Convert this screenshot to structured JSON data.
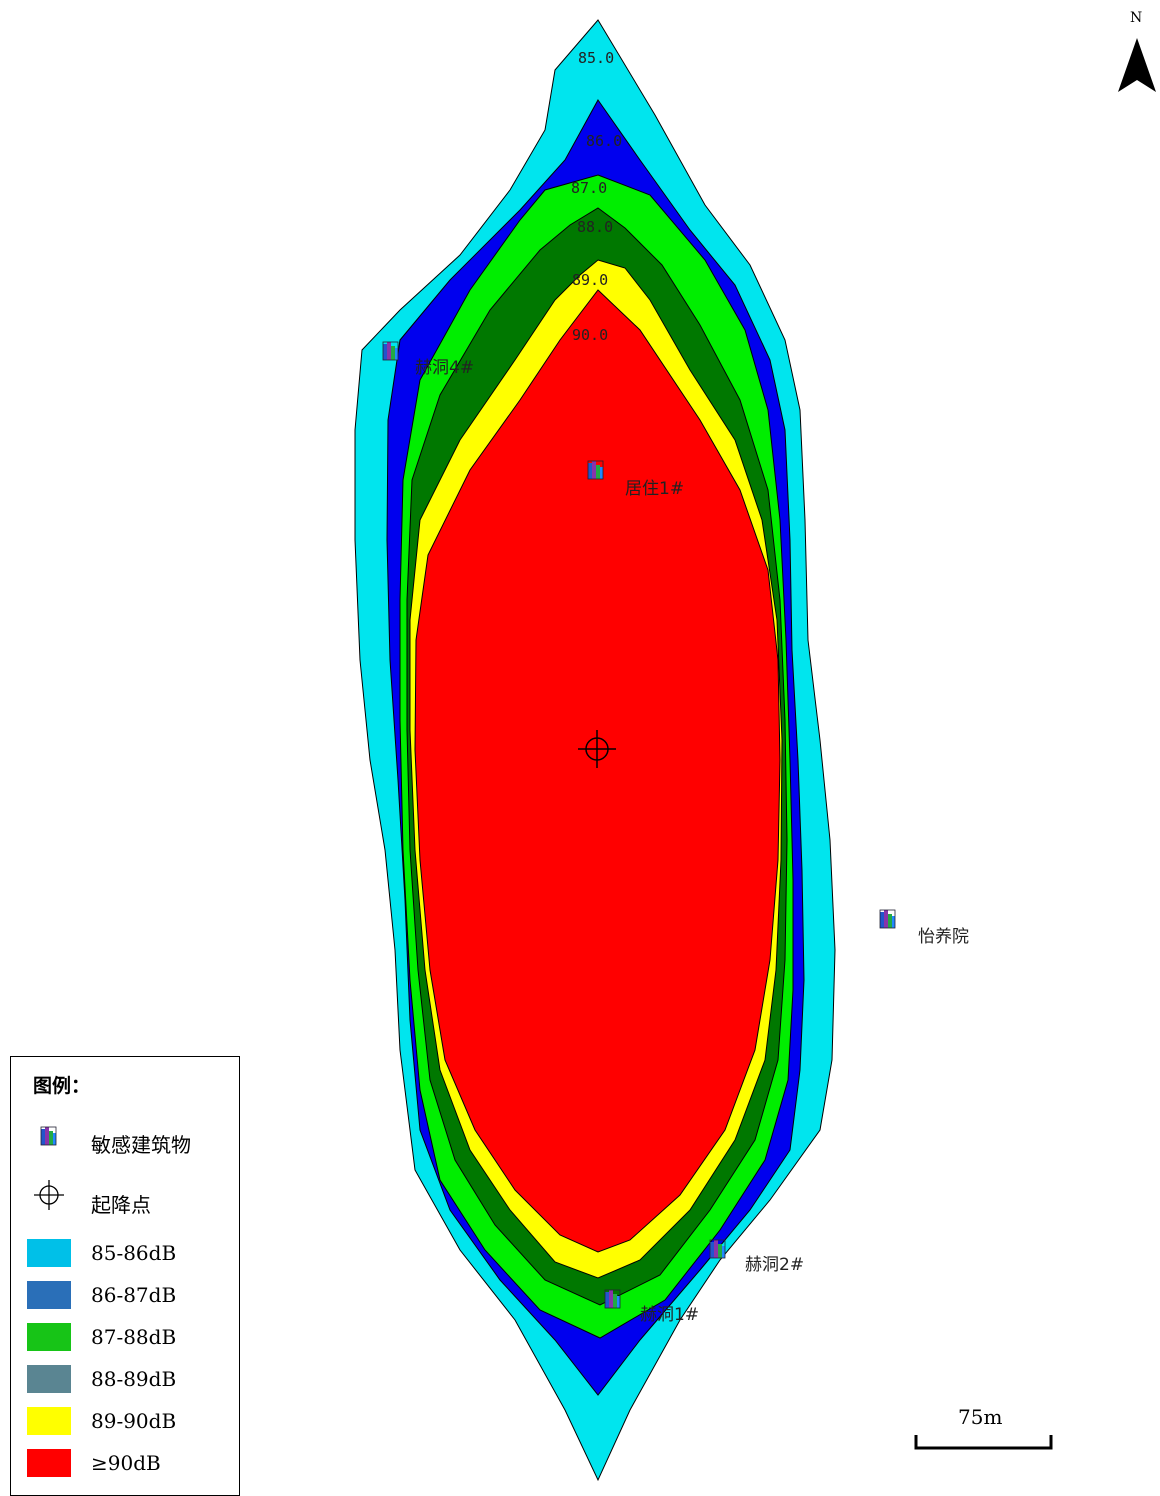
{
  "contours": [
    {
      "label": "85.0",
      "color": "#00e5ee"
    },
    {
      "label": "86.0",
      "color": "#0000ee"
    },
    {
      "label": "87.0",
      "color": "#00ee00"
    },
    {
      "label": "88.0",
      "color": "#007800"
    },
    {
      "label": "89.0",
      "color": "#ffff00"
    },
    {
      "label": "90.0",
      "color": "#ff0000"
    }
  ],
  "buildings": [
    {
      "name": "赫洞4#"
    },
    {
      "name": "居住1#"
    },
    {
      "name": "怡养院"
    },
    {
      "name": "赫洞2#"
    },
    {
      "name": "赫洞1#"
    }
  ],
  "north_label": "N",
  "scale_label": "75m",
  "legend": {
    "title": "图例：",
    "icon_items": [
      {
        "icon": "building-icon",
        "label": "敏感建筑物"
      },
      {
        "icon": "crosshair-icon",
        "label": "起降点"
      }
    ],
    "ranges": [
      {
        "label": "85-86dB",
        "color": "#00c0e8"
      },
      {
        "label": "86-87dB",
        "color": "#2a6fb8"
      },
      {
        "label": "87-88dB",
        "color": "#17c417"
      },
      {
        "label": "88-89dB",
        "color": "#5a8592"
      },
      {
        "label": "89-90dB",
        "color": "#ffff00"
      },
      {
        "label": "≥90dB",
        "color": "#ff0000"
      }
    ]
  }
}
